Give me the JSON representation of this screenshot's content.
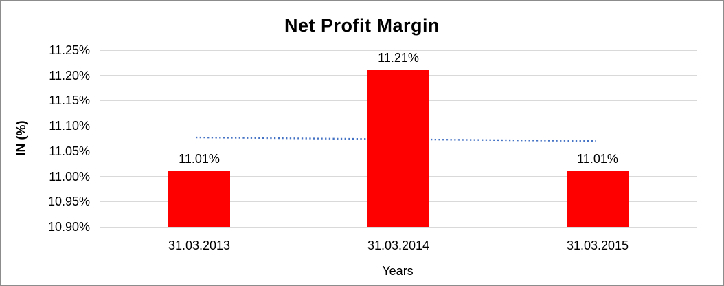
{
  "frame": {
    "border_color": "#8c8c8c",
    "background": "#ffffff"
  },
  "chart_data": {
    "type": "bar",
    "title": "Net Profit Margin",
    "xlabel": "Years",
    "ylabel": "IN (%)",
    "categories": [
      "31.03.2013",
      "31.03.2014",
      "31.03.2015"
    ],
    "values": [
      11.01,
      11.21,
      11.01
    ],
    "data_labels": [
      "11.01%",
      "11.21%",
      "11.01%"
    ],
    "ylim": [
      10.9,
      11.25
    ],
    "ytick_step": 0.05,
    "ytick_labels": [
      "11.25%",
      "11.20%",
      "11.15%",
      "11.10%",
      "11.05%",
      "11.00%",
      "10.95%",
      "10.90%"
    ],
    "grid": true,
    "legend": "none",
    "bar_color": "#ff0000",
    "gridline_color": "#d9d9d9",
    "text_color": "#000000",
    "trendline": {
      "kind": "linear",
      "style": "dotted",
      "color": "#4472c4",
      "start_value": 11.077,
      "end_value": 11.07
    }
  }
}
